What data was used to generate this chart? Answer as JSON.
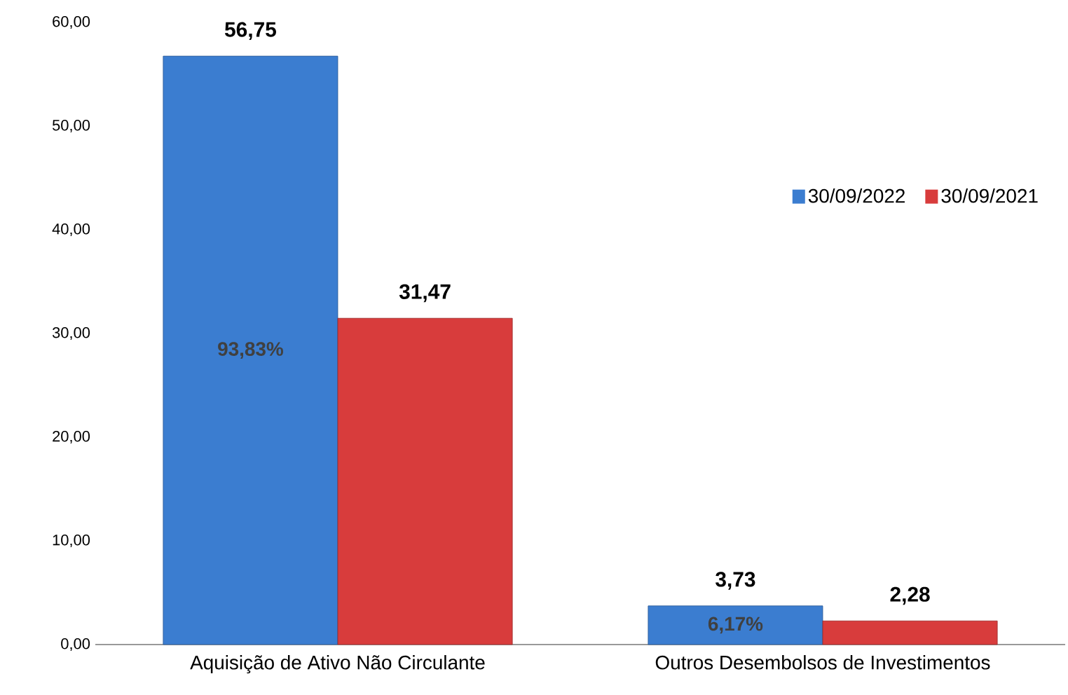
{
  "chart_data": {
    "type": "bar",
    "categories": [
      "Aquisição de Ativo Não Circulante",
      "Outros Desembolsos de Investimentos"
    ],
    "series": [
      {
        "name": "30/09/2022",
        "color": "#3b7dd0",
        "values": [
          56.75,
          3.73
        ],
        "value_labels": [
          "56,75",
          "3,73"
        ]
      },
      {
        "name": "30/09/2021",
        "color": "#d83c3c",
        "values": [
          31.47,
          2.28
        ],
        "value_labels": [
          "31,47",
          "2,28"
        ]
      }
    ],
    "ylim": [
      0,
      60
    ],
    "yticks": [
      {
        "value": 0,
        "label": "0,00"
      },
      {
        "value": 10,
        "label": "10,00"
      },
      {
        "value": 20,
        "label": "20,00"
      },
      {
        "value": 30,
        "label": "30,00"
      },
      {
        "value": 40,
        "label": "40,00"
      },
      {
        "value": 50,
        "label": "50,00"
      },
      {
        "value": 60,
        "label": "60,00"
      }
    ],
    "annotations": [
      "93,83%",
      "6,17%"
    ],
    "legend": "right"
  }
}
